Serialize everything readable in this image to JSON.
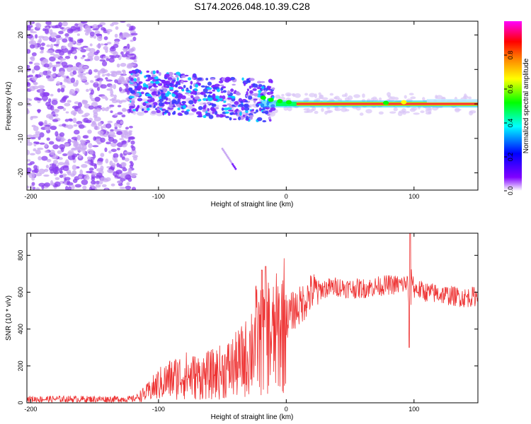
{
  "figure": {
    "title": "S174.2026.048.10.39.C28"
  },
  "chart_data": [
    {
      "type": "heatmap",
      "title": "S174.2026.048.10.39.C28",
      "xlabel": "Height of straight line (km)",
      "ylabel": "Frequency (Hz)",
      "xlim": [
        -203,
        150
      ],
      "ylim": [
        -25,
        24
      ],
      "xticks": [
        -200,
        -100,
        0,
        100
      ],
      "xtick_labels": [
        "-200",
        "-100",
        "0",
        "100"
      ],
      "yticks": [
        -20,
        -10,
        0,
        10,
        20
      ],
      "ytick_labels": [
        "-20",
        "-10",
        "0",
        "10",
        "20"
      ],
      "colorbar": {
        "label": "Normalized spectral amplitude",
        "range": [
          0,
          1
        ],
        "ticks": [
          0.0,
          0.2,
          0.4,
          0.6,
          0.8
        ],
        "tick_labels": [
          "0.0",
          "0.2",
          "0.4",
          "0.6",
          "0.8"
        ],
        "colormap": [
          "#ffffff",
          "#8000ff",
          "#0000ff",
          "#00ffff",
          "#00ff00",
          "#ffff00",
          "#ff8000",
          "#ff0000",
          "#ff00ff"
        ]
      },
      "description_points": [
        {
          "x": -200,
          "y": 0,
          "amplitude": 0.15
        },
        {
          "x": -120,
          "y": 5,
          "amplitude": 0.35
        },
        {
          "x": -70,
          "y": 6,
          "amplitude": 0.4
        },
        {
          "x": -40,
          "y": 3,
          "amplitude": 0.35
        },
        {
          "x": -20,
          "y": 1.5,
          "amplitude": 0.55
        },
        {
          "x": 0,
          "y": 0.5,
          "amplitude": 0.5
        },
        {
          "x": 20,
          "y": 0,
          "amplitude": 0.85
        },
        {
          "x": 60,
          "y": 0,
          "amplitude": 0.85
        },
        {
          "x": 90,
          "y": 0.5,
          "amplitude": 0.9
        },
        {
          "x": 150,
          "y": 0.5,
          "amplitude": 0.6
        }
      ]
    },
    {
      "type": "line",
      "xlabel": "Height of straight line (km)",
      "ylabel": "SNR (10 * v/v)",
      "xlim": [
        -203,
        150
      ],
      "ylim": [
        0,
        920
      ],
      "xticks": [
        -200,
        -100,
        0,
        100
      ],
      "xtick_labels": [
        "-200",
        "-100",
        "0",
        "100"
      ],
      "yticks": [
        0,
        200,
        400,
        600,
        800
      ],
      "ytick_labels": [
        "0",
        "200",
        "400",
        "600",
        "800"
      ],
      "series": [
        {
          "name": "SNR",
          "color": "#ee3333",
          "x": [
            -203,
            -180,
            -160,
            -140,
            -120,
            -110,
            -100,
            -90,
            -80,
            -70,
            -60,
            -50,
            -40,
            -30,
            -25,
            -20,
            -15,
            -10,
            -5,
            0,
            5,
            10,
            15,
            20,
            30,
            40,
            50,
            60,
            70,
            80,
            90,
            95,
            97,
            98,
            100,
            110,
            120,
            130,
            140,
            150
          ],
          "y": [
            20,
            20,
            20,
            20,
            20,
            50,
            100,
            130,
            150,
            140,
            150,
            170,
            200,
            250,
            350,
            330,
            380,
            350,
            400,
            450,
            500,
            520,
            560,
            600,
            620,
            630,
            620,
            620,
            630,
            640,
            640,
            650,
            400,
            700,
            620,
            600,
            590,
            580,
            570,
            580
          ]
        }
      ],
      "annotations": [
        {
          "x": 97,
          "y": 920,
          "label": "spike"
        },
        {
          "x": -16,
          "y": 740,
          "label": "spike"
        },
        {
          "x": 97,
          "y": 300,
          "label": "dip"
        }
      ]
    }
  ]
}
